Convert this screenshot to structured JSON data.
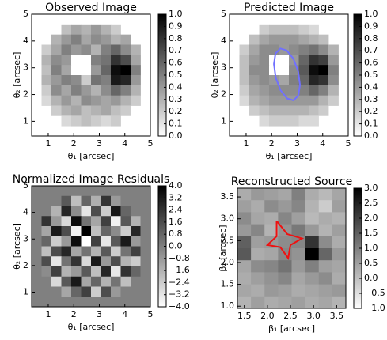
{
  "chart_data": [
    {
      "type": "heatmap",
      "title": "Observed Image",
      "xlabel": "θ₁ [arcsec]",
      "ylabel": "θ₂ [arcsec]",
      "xlim": [
        0.35,
        5
      ],
      "ylim": [
        0.45,
        5
      ],
      "xticks": [
        1,
        2,
        3,
        4,
        5
      ],
      "yticks": [
        1,
        2,
        3,
        4,
        5
      ],
      "clim": [
        0,
        1
      ],
      "cticks": [
        {
          "value": 0,
          "label": "0.0"
        },
        0.1,
        0.2,
        0.3,
        0.4,
        0.5,
        0.6,
        0.7,
        0.8,
        0.9,
        {
          "value": 1,
          "label": "1.0"
        }
      ],
      "z": [
        [
          null,
          null,
          null,
          null,
          null,
          null,
          null,
          null,
          null,
          null,
          null,
          null
        ],
        [
          null,
          null,
          null,
          0.25,
          0.35,
          0.3,
          0.4,
          0.3,
          0.2,
          null,
          null,
          null
        ],
        [
          null,
          null,
          0.3,
          0.4,
          0.5,
          0.35,
          0.45,
          0.4,
          0.3,
          0.35,
          null,
          null
        ],
        [
          null,
          0.2,
          0.35,
          0.5,
          0.4,
          0.45,
          0.3,
          0.5,
          0.6,
          0.45,
          0.3,
          null
        ],
        [
          null,
          0.3,
          0.45,
          0.4,
          0,
          0,
          0.5,
          0.55,
          0.8,
          0.7,
          0.35,
          null
        ],
        [
          null,
          0.25,
          0.5,
          0.35,
          0,
          0,
          0.4,
          0.6,
          0.95,
          1,
          0.5,
          null
        ],
        [
          null,
          0.3,
          0.4,
          0.5,
          0.45,
          0.2,
          0.55,
          0.5,
          0.9,
          0.85,
          0.4,
          null
        ],
        [
          null,
          0.2,
          0.45,
          0.35,
          0.5,
          0.4,
          0.3,
          0.45,
          0.6,
          0.5,
          0.3,
          null
        ],
        [
          null,
          0.15,
          0.3,
          0.4,
          0.3,
          0.45,
          0.4,
          0.35,
          0.4,
          0.3,
          0.2,
          null
        ],
        [
          null,
          null,
          0.2,
          0.3,
          0.35,
          0.25,
          0.3,
          0.35,
          0.25,
          0.2,
          null,
          null
        ],
        [
          null,
          null,
          null,
          0.15,
          0.2,
          0.25,
          0.2,
          0.15,
          0.2,
          null,
          null,
          null
        ],
        [
          null,
          null,
          null,
          null,
          null,
          null,
          null,
          null,
          null,
          null,
          null,
          null
        ]
      ]
    },
    {
      "type": "heatmap",
      "title": "Predicted Image",
      "xlabel": "θ₁ [arcsec]",
      "ylabel": "θ₂ [arcsec]",
      "xlim": [
        0.35,
        5
      ],
      "ylim": [
        0.45,
        5
      ],
      "xticks": [
        1,
        2,
        3,
        4,
        5
      ],
      "yticks": [
        1,
        2,
        3,
        4,
        5
      ],
      "clim": [
        0,
        1
      ],
      "cticks": [
        {
          "value": 0,
          "label": "0.0"
        },
        0.1,
        0.2,
        0.3,
        0.4,
        0.5,
        0.6,
        0.7,
        0.8,
        0.9,
        {
          "value": 1,
          "label": "1.0"
        }
      ],
      "z": [
        [
          null,
          null,
          null,
          null,
          null,
          null,
          null,
          null,
          null,
          null,
          null,
          null
        ],
        [
          null,
          null,
          null,
          0.2,
          0.25,
          0.25,
          0.25,
          0.2,
          0.15,
          null,
          null,
          null
        ],
        [
          null,
          null,
          0.25,
          0.35,
          0.4,
          0.4,
          0.4,
          0.35,
          0.3,
          0.25,
          null,
          null
        ],
        [
          null,
          0.2,
          0.35,
          0.45,
          0.45,
          0.4,
          0.45,
          0.5,
          0.55,
          0.45,
          0.3,
          null
        ],
        [
          null,
          0.25,
          0.4,
          0.45,
          0,
          0,
          0.4,
          0.6,
          0.8,
          0.75,
          0.4,
          null
        ],
        [
          null,
          0.25,
          0.45,
          0.45,
          0,
          0,
          0.45,
          0.65,
          0.95,
          1,
          0.5,
          null
        ],
        [
          null,
          0.25,
          0.4,
          0.45,
          0.4,
          0.35,
          0.5,
          0.6,
          0.85,
          0.8,
          0.45,
          null
        ],
        [
          null,
          0.2,
          0.35,
          0.4,
          0.45,
          0.45,
          0.45,
          0.5,
          0.6,
          0.5,
          0.3,
          null
        ],
        [
          null,
          0.15,
          0.3,
          0.35,
          0.4,
          0.4,
          0.4,
          0.4,
          0.4,
          0.3,
          0.2,
          null
        ],
        [
          null,
          null,
          0.2,
          0.25,
          0.3,
          0.3,
          0.3,
          0.3,
          0.25,
          0.2,
          null,
          null
        ],
        [
          null,
          null,
          null,
          0.15,
          0.2,
          0.2,
          0.2,
          0.15,
          0.15,
          null,
          null,
          null
        ],
        [
          null,
          null,
          null,
          null,
          null,
          null,
          null,
          null,
          null,
          null,
          null,
          null
        ]
      ],
      "curves": [
        {
          "color": "#7070ff",
          "x": [
            3.04,
            2.85,
            2.59,
            2.34,
            2.15,
            2.09,
            2.16,
            2.35,
            2.61,
            2.86,
            3.05,
            3.11,
            3.04
          ],
          "y": [
            2.87,
            3.34,
            3.65,
            3.72,
            3.53,
            3.14,
            2.63,
            2.16,
            1.85,
            1.78,
            1.97,
            2.36,
            2.87
          ]
        }
      ]
    },
    {
      "type": "heatmap",
      "title": "Normalized Image Residuals",
      "xlabel": "θ₁ [arcsec]",
      "ylabel": "θ₂ [arcsec]",
      "xlim": [
        0.35,
        5
      ],
      "ylim": [
        0.45,
        5
      ],
      "xticks": [
        1,
        2,
        3,
        4,
        5
      ],
      "yticks": [
        1,
        2,
        3,
        4,
        5
      ],
      "clim": [
        -4,
        4
      ],
      "cticks": [
        {
          "value": -4,
          "label": "−4.0"
        },
        {
          "value": -3.2,
          "label": "−3.2"
        },
        {
          "value": -2.4,
          "label": "−2.4"
        },
        {
          "value": -1.6,
          "label": "−1.6"
        },
        {
          "value": -0.8,
          "label": "−0.8"
        },
        {
          "value": 0,
          "label": "0.0"
        },
        0.8,
        1.6,
        2.4,
        3.2,
        {
          "value": 4,
          "label": "4.0"
        }
      ],
      "z": [
        [
          0,
          0,
          0,
          0,
          0,
          0,
          0,
          0,
          0,
          0,
          0,
          0
        ],
        [
          0,
          0,
          0,
          1.2,
          -2,
          0.8,
          -1.5,
          2.4,
          -0.8,
          0,
          0,
          0
        ],
        [
          0,
          0,
          -1.6,
          2.8,
          -0.4,
          -3.2,
          1.6,
          -2.4,
          3.2,
          0.8,
          0,
          0
        ],
        [
          0,
          2.4,
          -0.8,
          -2.8,
          3.6,
          0.4,
          -1.2,
          2,
          -3.6,
          1.2,
          -1.6,
          0
        ],
        [
          0,
          -1.2,
          3.2,
          1.6,
          -3.6,
          4,
          -2,
          0.8,
          -0.4,
          -2.4,
          2.8,
          0
        ],
        [
          0,
          0.8,
          -2.4,
          -0.8,
          3.6,
          -4,
          2,
          -3.2,
          1.2,
          3.2,
          -0.8,
          0
        ],
        [
          0,
          -2,
          1.6,
          2.8,
          -1.2,
          0.4,
          -1.6,
          1.2,
          -2.4,
          0.4,
          2,
          0
        ],
        [
          0,
          1.6,
          -3.2,
          0.4,
          2.4,
          -2.8,
          3.2,
          -0.8,
          1.6,
          -1.6,
          -2.4,
          0
        ],
        [
          0,
          -0.4,
          2,
          -1.6,
          -0.8,
          1.2,
          -2,
          2.8,
          -3.2,
          2.4,
          0.8,
          0
        ],
        [
          0,
          0,
          -2.8,
          1.2,
          3.2,
          -1.2,
          0.8,
          -1.6,
          0.4,
          -2,
          0,
          0
        ],
        [
          0,
          0,
          0,
          -1.2,
          0.8,
          2,
          -2.4,
          1.6,
          -0.8,
          0,
          0,
          0
        ],
        [
          0,
          0,
          0,
          0,
          0,
          0,
          0,
          0,
          0,
          0,
          0,
          0
        ]
      ]
    },
    {
      "type": "heatmap",
      "title": "Reconstructed Source",
      "xlabel": "β₁ [arcsec]",
      "ylabel": "β₂ [arcsec]",
      "xlim": [
        1.35,
        3.7
      ],
      "ylim": [
        0.95,
        3.7
      ],
      "xticks": [
        1.5,
        {
          "value": 2,
          "label": "2.0"
        },
        2.5,
        {
          "value": 3,
          "label": "3.0"
        },
        3.5
      ],
      "yticks": [
        {
          "value": 1,
          "label": "1.0"
        },
        1.5,
        {
          "value": 2,
          "label": "2.0"
        },
        2.5,
        {
          "value": 3,
          "label": "3.0"
        },
        3.5
      ],
      "clim": [
        -1,
        3
      ],
      "cticks": [
        {
          "value": -1,
          "label": "−1.0"
        },
        {
          "value": -0.5,
          "label": "−0.5"
        },
        {
          "value": 0,
          "label": "0.0"
        },
        0.5,
        {
          "value": 1,
          "label": "1.0"
        },
        1.5,
        {
          "value": 2,
          "label": "2.0"
        },
        2.5,
        {
          "value": 3,
          "label": "3.0"
        }
      ],
      "z": [
        [
          0.3,
          0.6,
          0.5,
          0.4,
          1.0,
          0.3,
          0.1,
          0.4
        ],
        [
          0.5,
          0.3,
          0.8,
          0.6,
          0.9,
          0.2,
          -0.2,
          0.5
        ],
        [
          0.8,
          0.4,
          0.3,
          0.9,
          0.5,
          0.1,
          0.3,
          0.2
        ],
        [
          0.6,
          0.9,
          0.2,
          0.7,
          1.1,
          0.6,
          0.2,
          0.5
        ],
        [
          1.5,
          0.5,
          0.6,
          0.8,
          0.9,
          2.2,
          0.8,
          0.3
        ],
        [
          1.6,
          0.3,
          0.4,
          0.9,
          0.7,
          3.0,
          1.4,
          0.6
        ],
        [
          0.4,
          0.8,
          0.9,
          1.2,
          0.6,
          1.0,
          0.5,
          0.4
        ],
        [
          0.3,
          0.5,
          0.7,
          0.9,
          0.4,
          0.6,
          0.8,
          0.3
        ],
        [
          0.4,
          0.3,
          0.6,
          0.5,
          0.3,
          0.4,
          0.5,
          0.6
        ],
        [
          0.2,
          0.5,
          0.3,
          0.4,
          0.5,
          0.3,
          0.4,
          0.2
        ]
      ],
      "curves": [
        {
          "color": "#ee1111",
          "x": [
            2.2,
            2.43,
            2.75,
            2.5,
            2.45,
            2.28,
            2.0,
            2.2,
            2.2
          ],
          "y": [
            2.95,
            2.65,
            2.55,
            2.4,
            2.1,
            2.35,
            2.4,
            2.6,
            2.95
          ]
        }
      ]
    }
  ]
}
